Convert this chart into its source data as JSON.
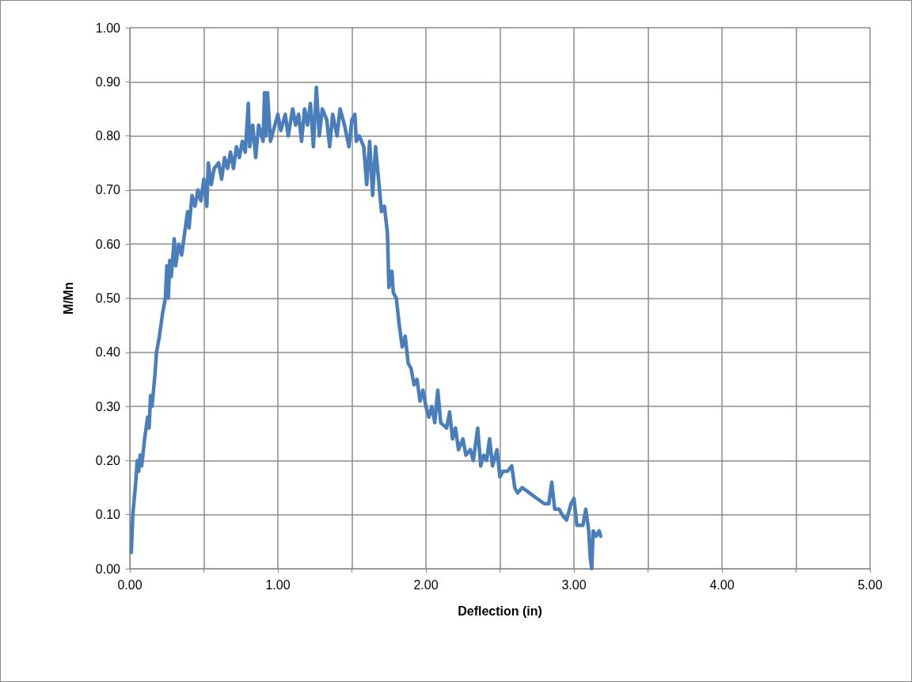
{
  "chart_data": {
    "type": "line",
    "xlabel": "Deflection (in)",
    "ylabel": "M/Mn",
    "xlim": [
      0,
      5
    ],
    "ylim": [
      0,
      1
    ],
    "xticks": [
      {
        "value": 0,
        "label": "0.00"
      },
      {
        "value": 0.5,
        "label": null
      },
      {
        "value": 1,
        "label": "1.00"
      },
      {
        "value": 1.5,
        "label": null
      },
      {
        "value": 2,
        "label": "2.00"
      },
      {
        "value": 2.5,
        "label": null
      },
      {
        "value": 3,
        "label": "3.00"
      },
      {
        "value": 3.5,
        "label": null
      },
      {
        "value": 4,
        "label": "4.00"
      },
      {
        "value": 4.5,
        "label": null
      },
      {
        "value": 5,
        "label": "5.00"
      }
    ],
    "yticks": [
      {
        "value": 0,
        "label": "0.00"
      },
      {
        "value": 0.1,
        "label": "0.10"
      },
      {
        "value": 0.2,
        "label": "0.20"
      },
      {
        "value": 0.3,
        "label": "0.30"
      },
      {
        "value": 0.4,
        "label": "0.40"
      },
      {
        "value": 0.5,
        "label": "0.50"
      },
      {
        "value": 0.6,
        "label": "0.60"
      },
      {
        "value": 0.7,
        "label": "0.70"
      },
      {
        "value": 0.8,
        "label": "0.80"
      },
      {
        "value": 0.9,
        "label": "0.90"
      },
      {
        "value": 1,
        "label": "1.00"
      }
    ],
    "grid": true,
    "marker": "none",
    "line_style": "solid",
    "series": [
      {
        "color": "#4a7ebb",
        "x": [
          0.01,
          0.02,
          0.03,
          0.04,
          0.05,
          0.06,
          0.07,
          0.08,
          0.1,
          0.12,
          0.13,
          0.14,
          0.15,
          0.17,
          0.18,
          0.2,
          0.22,
          0.24,
          0.25,
          0.26,
          0.27,
          0.28,
          0.3,
          0.31,
          0.33,
          0.35,
          0.37,
          0.39,
          0.4,
          0.42,
          0.44,
          0.46,
          0.48,
          0.5,
          0.52,
          0.53,
          0.55,
          0.57,
          0.6,
          0.62,
          0.64,
          0.66,
          0.68,
          0.7,
          0.72,
          0.74,
          0.76,
          0.78,
          0.8,
          0.81,
          0.83,
          0.85,
          0.87,
          0.9,
          0.91,
          0.92,
          0.93,
          0.95,
          0.98,
          1.0,
          1.02,
          1.05,
          1.07,
          1.1,
          1.12,
          1.14,
          1.16,
          1.18,
          1.2,
          1.22,
          1.24,
          1.26,
          1.28,
          1.3,
          1.33,
          1.35,
          1.37,
          1.4,
          1.42,
          1.45,
          1.48,
          1.5,
          1.52,
          1.53,
          1.55,
          1.58,
          1.6,
          1.62,
          1.64,
          1.66,
          1.68,
          1.7,
          1.72,
          1.74,
          1.75,
          1.77,
          1.78,
          1.8,
          1.82,
          1.84,
          1.86,
          1.88,
          1.9,
          1.92,
          1.94,
          1.96,
          1.98,
          2.0,
          2.02,
          2.04,
          2.06,
          2.08,
          2.1,
          2.14,
          2.16,
          2.18,
          2.2,
          2.22,
          2.25,
          2.27,
          2.3,
          2.32,
          2.35,
          2.37,
          2.39,
          2.41,
          2.43,
          2.45,
          2.48,
          2.5,
          2.52,
          2.55,
          2.58,
          2.6,
          2.62,
          2.65,
          2.7,
          2.75,
          2.8,
          2.83,
          2.85,
          2.87,
          2.9,
          2.92,
          2.95,
          2.98,
          3.0,
          3.02,
          3.06,
          3.08,
          3.1,
          3.11,
          3.12,
          3.13,
          3.15,
          3.17,
          3.18
        ],
        "values": [
          0.03,
          0.1,
          0.13,
          0.16,
          0.2,
          0.18,
          0.21,
          0.19,
          0.24,
          0.28,
          0.26,
          0.32,
          0.3,
          0.36,
          0.4,
          0.43,
          0.47,
          0.5,
          0.56,
          0.5,
          0.57,
          0.54,
          0.61,
          0.56,
          0.6,
          0.58,
          0.62,
          0.66,
          0.63,
          0.69,
          0.67,
          0.7,
          0.68,
          0.72,
          0.67,
          0.75,
          0.71,
          0.74,
          0.75,
          0.72,
          0.76,
          0.74,
          0.77,
          0.74,
          0.78,
          0.76,
          0.79,
          0.77,
          0.86,
          0.78,
          0.82,
          0.76,
          0.82,
          0.79,
          0.88,
          0.8,
          0.88,
          0.79,
          0.82,
          0.84,
          0.81,
          0.84,
          0.8,
          0.85,
          0.82,
          0.84,
          0.79,
          0.85,
          0.82,
          0.86,
          0.78,
          0.89,
          0.8,
          0.85,
          0.83,
          0.78,
          0.84,
          0.8,
          0.85,
          0.82,
          0.78,
          0.83,
          0.84,
          0.79,
          0.8,
          0.78,
          0.71,
          0.79,
          0.69,
          0.78,
          0.72,
          0.66,
          0.67,
          0.62,
          0.52,
          0.55,
          0.51,
          0.5,
          0.45,
          0.41,
          0.43,
          0.38,
          0.37,
          0.34,
          0.35,
          0.31,
          0.33,
          0.3,
          0.28,
          0.3,
          0.27,
          0.33,
          0.27,
          0.26,
          0.29,
          0.24,
          0.26,
          0.22,
          0.24,
          0.21,
          0.22,
          0.2,
          0.26,
          0.19,
          0.21,
          0.2,
          0.24,
          0.19,
          0.22,
          0.17,
          0.18,
          0.18,
          0.19,
          0.15,
          0.14,
          0.15,
          0.14,
          0.13,
          0.12,
          0.12,
          0.16,
          0.11,
          0.11,
          0.1,
          0.09,
          0.12,
          0.13,
          0.08,
          0.08,
          0.11,
          0.07,
          0.02,
          0.0,
          0.07,
          0.06,
          0.07,
          0.06
        ]
      }
    ]
  }
}
